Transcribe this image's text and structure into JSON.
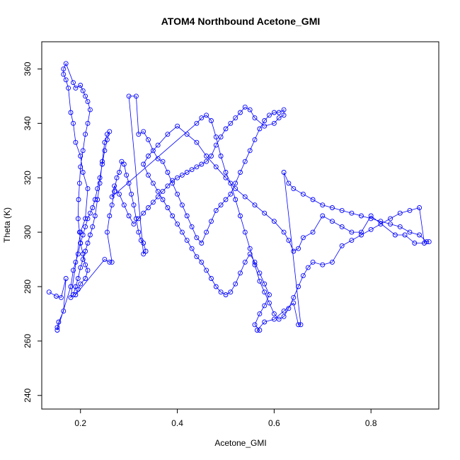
{
  "chart_data": {
    "type": "scatter",
    "title": "ATOM4 Northbound Acetone_GMI",
    "xlabel": "Acetone_GMI",
    "ylabel": "Theta (K)",
    "xlim": [
      0.12,
      0.94
    ],
    "ylim": [
      235,
      370
    ],
    "xticks": [
      0.2,
      0.4,
      0.6,
      0.8
    ],
    "yticks": [
      240,
      260,
      280,
      300,
      320,
      340,
      360
    ],
    "grid": false,
    "legend": "none",
    "series": [
      {
        "color": "#0000ff",
        "marker": "open-circle",
        "connected": true,
        "points": [
          [
            0.135,
            278
          ],
          [
            0.15,
            276.5
          ],
          [
            0.16,
            276
          ],
          [
            0.17,
            283
          ],
          [
            0.165,
            271
          ],
          [
            0.155,
            267
          ],
          [
            0.152,
            265
          ],
          [
            0.152,
            264
          ],
          [
            0.18,
            280
          ],
          [
            0.185,
            286
          ],
          [
            0.19,
            289
          ],
          [
            0.195,
            292
          ],
          [
            0.2,
            296
          ],
          [
            0.205,
            299
          ],
          [
            0.21,
            302
          ],
          [
            0.215,
            305
          ],
          [
            0.22,
            307
          ],
          [
            0.225,
            309
          ],
          [
            0.23,
            312
          ],
          [
            0.235,
            316
          ],
          [
            0.24,
            320
          ],
          [
            0.245,
            325
          ],
          [
            0.25,
            330
          ],
          [
            0.255,
            334
          ],
          [
            0.26,
            337
          ],
          [
            0.255,
            336
          ],
          [
            0.25,
            333
          ],
          [
            0.245,
            326
          ],
          [
            0.24,
            318
          ],
          [
            0.235,
            312
          ],
          [
            0.23,
            306
          ],
          [
            0.225,
            302
          ],
          [
            0.22,
            299
          ],
          [
            0.215,
            296
          ],
          [
            0.21,
            293
          ],
          [
            0.205,
            290
          ],
          [
            0.2,
            287
          ],
          [
            0.195,
            283
          ],
          [
            0.19,
            280
          ],
          [
            0.185,
            277
          ],
          [
            0.18,
            276
          ],
          [
            0.2,
            300
          ],
          [
            0.21,
            305
          ],
          [
            0.215,
            316
          ],
          [
            0.205,
            322
          ],
          [
            0.2,
            328
          ],
          [
            0.19,
            333
          ],
          [
            0.185,
            340
          ],
          [
            0.18,
            344
          ],
          [
            0.175,
            353
          ],
          [
            0.17,
            356
          ],
          [
            0.165,
            358
          ],
          [
            0.165,
            360
          ],
          [
            0.17,
            362
          ],
          [
            0.185,
            355
          ],
          [
            0.19,
            353
          ],
          [
            0.2,
            354
          ],
          [
            0.205,
            352
          ],
          [
            0.21,
            350
          ],
          [
            0.215,
            348
          ],
          [
            0.22,
            345
          ],
          [
            0.215,
            340
          ],
          [
            0.21,
            336
          ],
          [
            0.205,
            330
          ],
          [
            0.2,
            324
          ],
          [
            0.198,
            318
          ],
          [
            0.196,
            312
          ],
          [
            0.195,
            305
          ],
          [
            0.198,
            300
          ],
          [
            0.2,
            296
          ],
          [
            0.205,
            292
          ],
          [
            0.21,
            288
          ],
          [
            0.215,
            286
          ],
          [
            0.21,
            283
          ],
          [
            0.2,
            281
          ],
          [
            0.195,
            279
          ],
          [
            0.19,
            277
          ],
          [
            0.25,
            290
          ],
          [
            0.26,
            289
          ],
          [
            0.265,
            289
          ],
          [
            0.255,
            300
          ],
          [
            0.26,
            306
          ],
          [
            0.265,
            310
          ],
          [
            0.27,
            315
          ],
          [
            0.275,
            320
          ],
          [
            0.28,
            322
          ],
          [
            0.285,
            326
          ],
          [
            0.29,
            325
          ],
          [
            0.295,
            321
          ],
          [
            0.3,
            318
          ],
          [
            0.305,
            314
          ],
          [
            0.31,
            310
          ],
          [
            0.315,
            305
          ],
          [
            0.32,
            300
          ],
          [
            0.325,
            297
          ],
          [
            0.33,
            296
          ],
          [
            0.335,
            293
          ],
          [
            0.33,
            292
          ],
          [
            0.3,
            350
          ],
          [
            0.315,
            350
          ],
          [
            0.32,
            336
          ],
          [
            0.33,
            337
          ],
          [
            0.34,
            334
          ],
          [
            0.35,
            330
          ],
          [
            0.36,
            327
          ],
          [
            0.37,
            326
          ],
          [
            0.38,
            322
          ],
          [
            0.39,
            318
          ],
          [
            0.4,
            314
          ],
          [
            0.41,
            310
          ],
          [
            0.42,
            306
          ],
          [
            0.43,
            302
          ],
          [
            0.44,
            298
          ],
          [
            0.45,
            296
          ],
          [
            0.46,
            300
          ],
          [
            0.47,
            304
          ],
          [
            0.48,
            308
          ],
          [
            0.49,
            310
          ],
          [
            0.5,
            312
          ],
          [
            0.51,
            314
          ],
          [
            0.52,
            318
          ],
          [
            0.53,
            322
          ],
          [
            0.54,
            326
          ],
          [
            0.55,
            330
          ],
          [
            0.56,
            334
          ],
          [
            0.57,
            338
          ],
          [
            0.58,
            341
          ],
          [
            0.59,
            343
          ],
          [
            0.6,
            344
          ],
          [
            0.61,
            344
          ],
          [
            0.62,
            345
          ],
          [
            0.62,
            343
          ],
          [
            0.61,
            342
          ],
          [
            0.6,
            340
          ],
          [
            0.58,
            339
          ],
          [
            0.56,
            342
          ],
          [
            0.55,
            345
          ],
          [
            0.54,
            346
          ],
          [
            0.53,
            344
          ],
          [
            0.52,
            342
          ],
          [
            0.51,
            340
          ],
          [
            0.5,
            338
          ],
          [
            0.49,
            335
          ],
          [
            0.48,
            332
          ],
          [
            0.47,
            328
          ],
          [
            0.46,
            326
          ],
          [
            0.45,
            325
          ],
          [
            0.44,
            324
          ],
          [
            0.43,
            323
          ],
          [
            0.42,
            322
          ],
          [
            0.41,
            321
          ],
          [
            0.4,
            320
          ],
          [
            0.39,
            319
          ],
          [
            0.38,
            317
          ],
          [
            0.37,
            315
          ],
          [
            0.36,
            313
          ],
          [
            0.35,
            311
          ],
          [
            0.34,
            309
          ],
          [
            0.33,
            307
          ],
          [
            0.32,
            305
          ],
          [
            0.31,
            303
          ],
          [
            0.3,
            306
          ],
          [
            0.29,
            310
          ],
          [
            0.28,
            314
          ],
          [
            0.27,
            317
          ],
          [
            0.265,
            313
          ],
          [
            0.44,
            340
          ],
          [
            0.45,
            342
          ],
          [
            0.46,
            343
          ],
          [
            0.47,
            341
          ],
          [
            0.48,
            335
          ],
          [
            0.49,
            328
          ],
          [
            0.5,
            322
          ],
          [
            0.51,
            318
          ],
          [
            0.52,
            312
          ],
          [
            0.53,
            306
          ],
          [
            0.54,
            300
          ],
          [
            0.55,
            294
          ],
          [
            0.56,
            288
          ],
          [
            0.57,
            282
          ],
          [
            0.58,
            278
          ],
          [
            0.59,
            274
          ],
          [
            0.6,
            270
          ],
          [
            0.61,
            268
          ],
          [
            0.62,
            269
          ],
          [
            0.63,
            272
          ],
          [
            0.64,
            276
          ],
          [
            0.65,
            280
          ],
          [
            0.66,
            284
          ],
          [
            0.67,
            287
          ],
          [
            0.68,
            289
          ],
          [
            0.7,
            288
          ],
          [
            0.72,
            289
          ],
          [
            0.74,
            295
          ],
          [
            0.76,
            297
          ],
          [
            0.78,
            299
          ],
          [
            0.8,
            301
          ],
          [
            0.82,
            303
          ],
          [
            0.84,
            305
          ],
          [
            0.86,
            307
          ],
          [
            0.88,
            308
          ],
          [
            0.9,
            309
          ],
          [
            0.91,
            296
          ],
          [
            0.89,
            296
          ],
          [
            0.87,
            299
          ],
          [
            0.85,
            299
          ],
          [
            0.8,
            306
          ],
          [
            0.78,
            300
          ],
          [
            0.76,
            300
          ],
          [
            0.74,
            302
          ],
          [
            0.72,
            304
          ],
          [
            0.7,
            306
          ],
          [
            0.68,
            300
          ],
          [
            0.66,
            298
          ],
          [
            0.65,
            294
          ],
          [
            0.64,
            293
          ],
          [
            0.63,
            297
          ],
          [
            0.62,
            300
          ],
          [
            0.6,
            304
          ],
          [
            0.58,
            307
          ],
          [
            0.56,
            310
          ],
          [
            0.54,
            313
          ],
          [
            0.52,
            316
          ],
          [
            0.5,
            320
          ],
          [
            0.48,
            324
          ],
          [
            0.46,
            328
          ],
          [
            0.44,
            333
          ],
          [
            0.42,
            336
          ],
          [
            0.4,
            339
          ],
          [
            0.38,
            336
          ],
          [
            0.36,
            332
          ],
          [
            0.34,
            328
          ],
          [
            0.33,
            325
          ],
          [
            0.34,
            321
          ],
          [
            0.35,
            318
          ],
          [
            0.36,
            315
          ],
          [
            0.37,
            312
          ],
          [
            0.38,
            309
          ],
          [
            0.39,
            306
          ],
          [
            0.4,
            303
          ],
          [
            0.41,
            300
          ],
          [
            0.42,
            297
          ],
          [
            0.43,
            294
          ],
          [
            0.44,
            291
          ],
          [
            0.45,
            289
          ],
          [
            0.46,
            286
          ],
          [
            0.47,
            283
          ],
          [
            0.48,
            280
          ],
          [
            0.49,
            278
          ],
          [
            0.5,
            277
          ],
          [
            0.51,
            278
          ],
          [
            0.52,
            281
          ],
          [
            0.53,
            285
          ],
          [
            0.54,
            289
          ],
          [
            0.55,
            292
          ],
          [
            0.56,
            289
          ],
          [
            0.57,
            285
          ],
          [
            0.58,
            281
          ],
          [
            0.59,
            277
          ],
          [
            0.58,
            273
          ],
          [
            0.57,
            270
          ],
          [
            0.56,
            266
          ],
          [
            0.57,
            264
          ],
          [
            0.565,
            264
          ],
          [
            0.58,
            267
          ],
          [
            0.6,
            268
          ],
          [
            0.62,
            271
          ],
          [
            0.64,
            274
          ],
          [
            0.65,
            266
          ],
          [
            0.655,
            266
          ],
          [
            0.62,
            322
          ],
          [
            0.63,
            318
          ],
          [
            0.64,
            316
          ],
          [
            0.66,
            314
          ],
          [
            0.68,
            312
          ],
          [
            0.7,
            310
          ],
          [
            0.72,
            309
          ],
          [
            0.74,
            308
          ],
          [
            0.76,
            307
          ],
          [
            0.78,
            306
          ],
          [
            0.8,
            305
          ],
          [
            0.82,
            304
          ],
          [
            0.84,
            303
          ],
          [
            0.86,
            302
          ],
          [
            0.88,
            300
          ],
          [
            0.9,
            299
          ],
          [
            0.915,
            296.5
          ],
          [
            0.92,
            296.5
          ]
        ]
      }
    ]
  }
}
